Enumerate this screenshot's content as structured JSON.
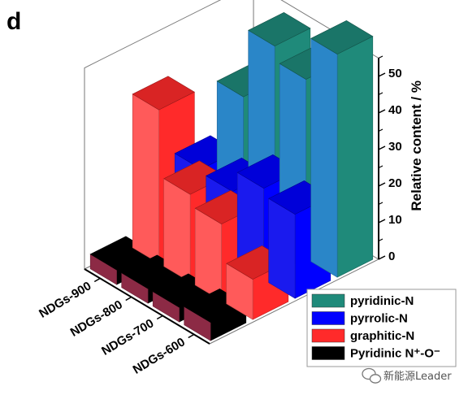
{
  "panel_label": "d",
  "watermark": {
    "text": "新能源Leader",
    "icon": "wechat-icon"
  },
  "chart_data": {
    "type": "bar",
    "categories": [
      "NDGs-900",
      "NDGs-800",
      "NDGs-700",
      "NDGs-600"
    ],
    "series": [
      {
        "name": "Pyridinic N⁺-O⁻",
        "color": "#000000",
        "side_color": "#8c2a45",
        "values": [
          4,
          4,
          4,
          5
        ]
      },
      {
        "name": "graphitic-N",
        "color": "#ff2a2a",
        "side_color": "#ff5a5a",
        "values": [
          42,
          24,
          21,
          11
        ]
      },
      {
        "name": "pyrrolic-N",
        "color": "#0000ff",
        "side_color": "#1a1aee",
        "values": [
          20,
          19,
          25,
          23
        ]
      },
      {
        "name": "pyridinic-N",
        "color": "#1f8a7a",
        "side_color": "#2a86c8",
        "values": [
          34,
          53,
          49,
          61
        ]
      }
    ],
    "legend_order": [
      "pyridinic-N",
      "pyrrolic-N",
      "graphitic-N",
      "Pyridinic N⁺-O⁻"
    ],
    "legend_placement": "bottom-right",
    "zlabel": "Relative content / %",
    "zticks": [
      "0",
      "10",
      "20",
      "30",
      "40",
      "50"
    ],
    "zlim": [
      0,
      55
    ]
  }
}
